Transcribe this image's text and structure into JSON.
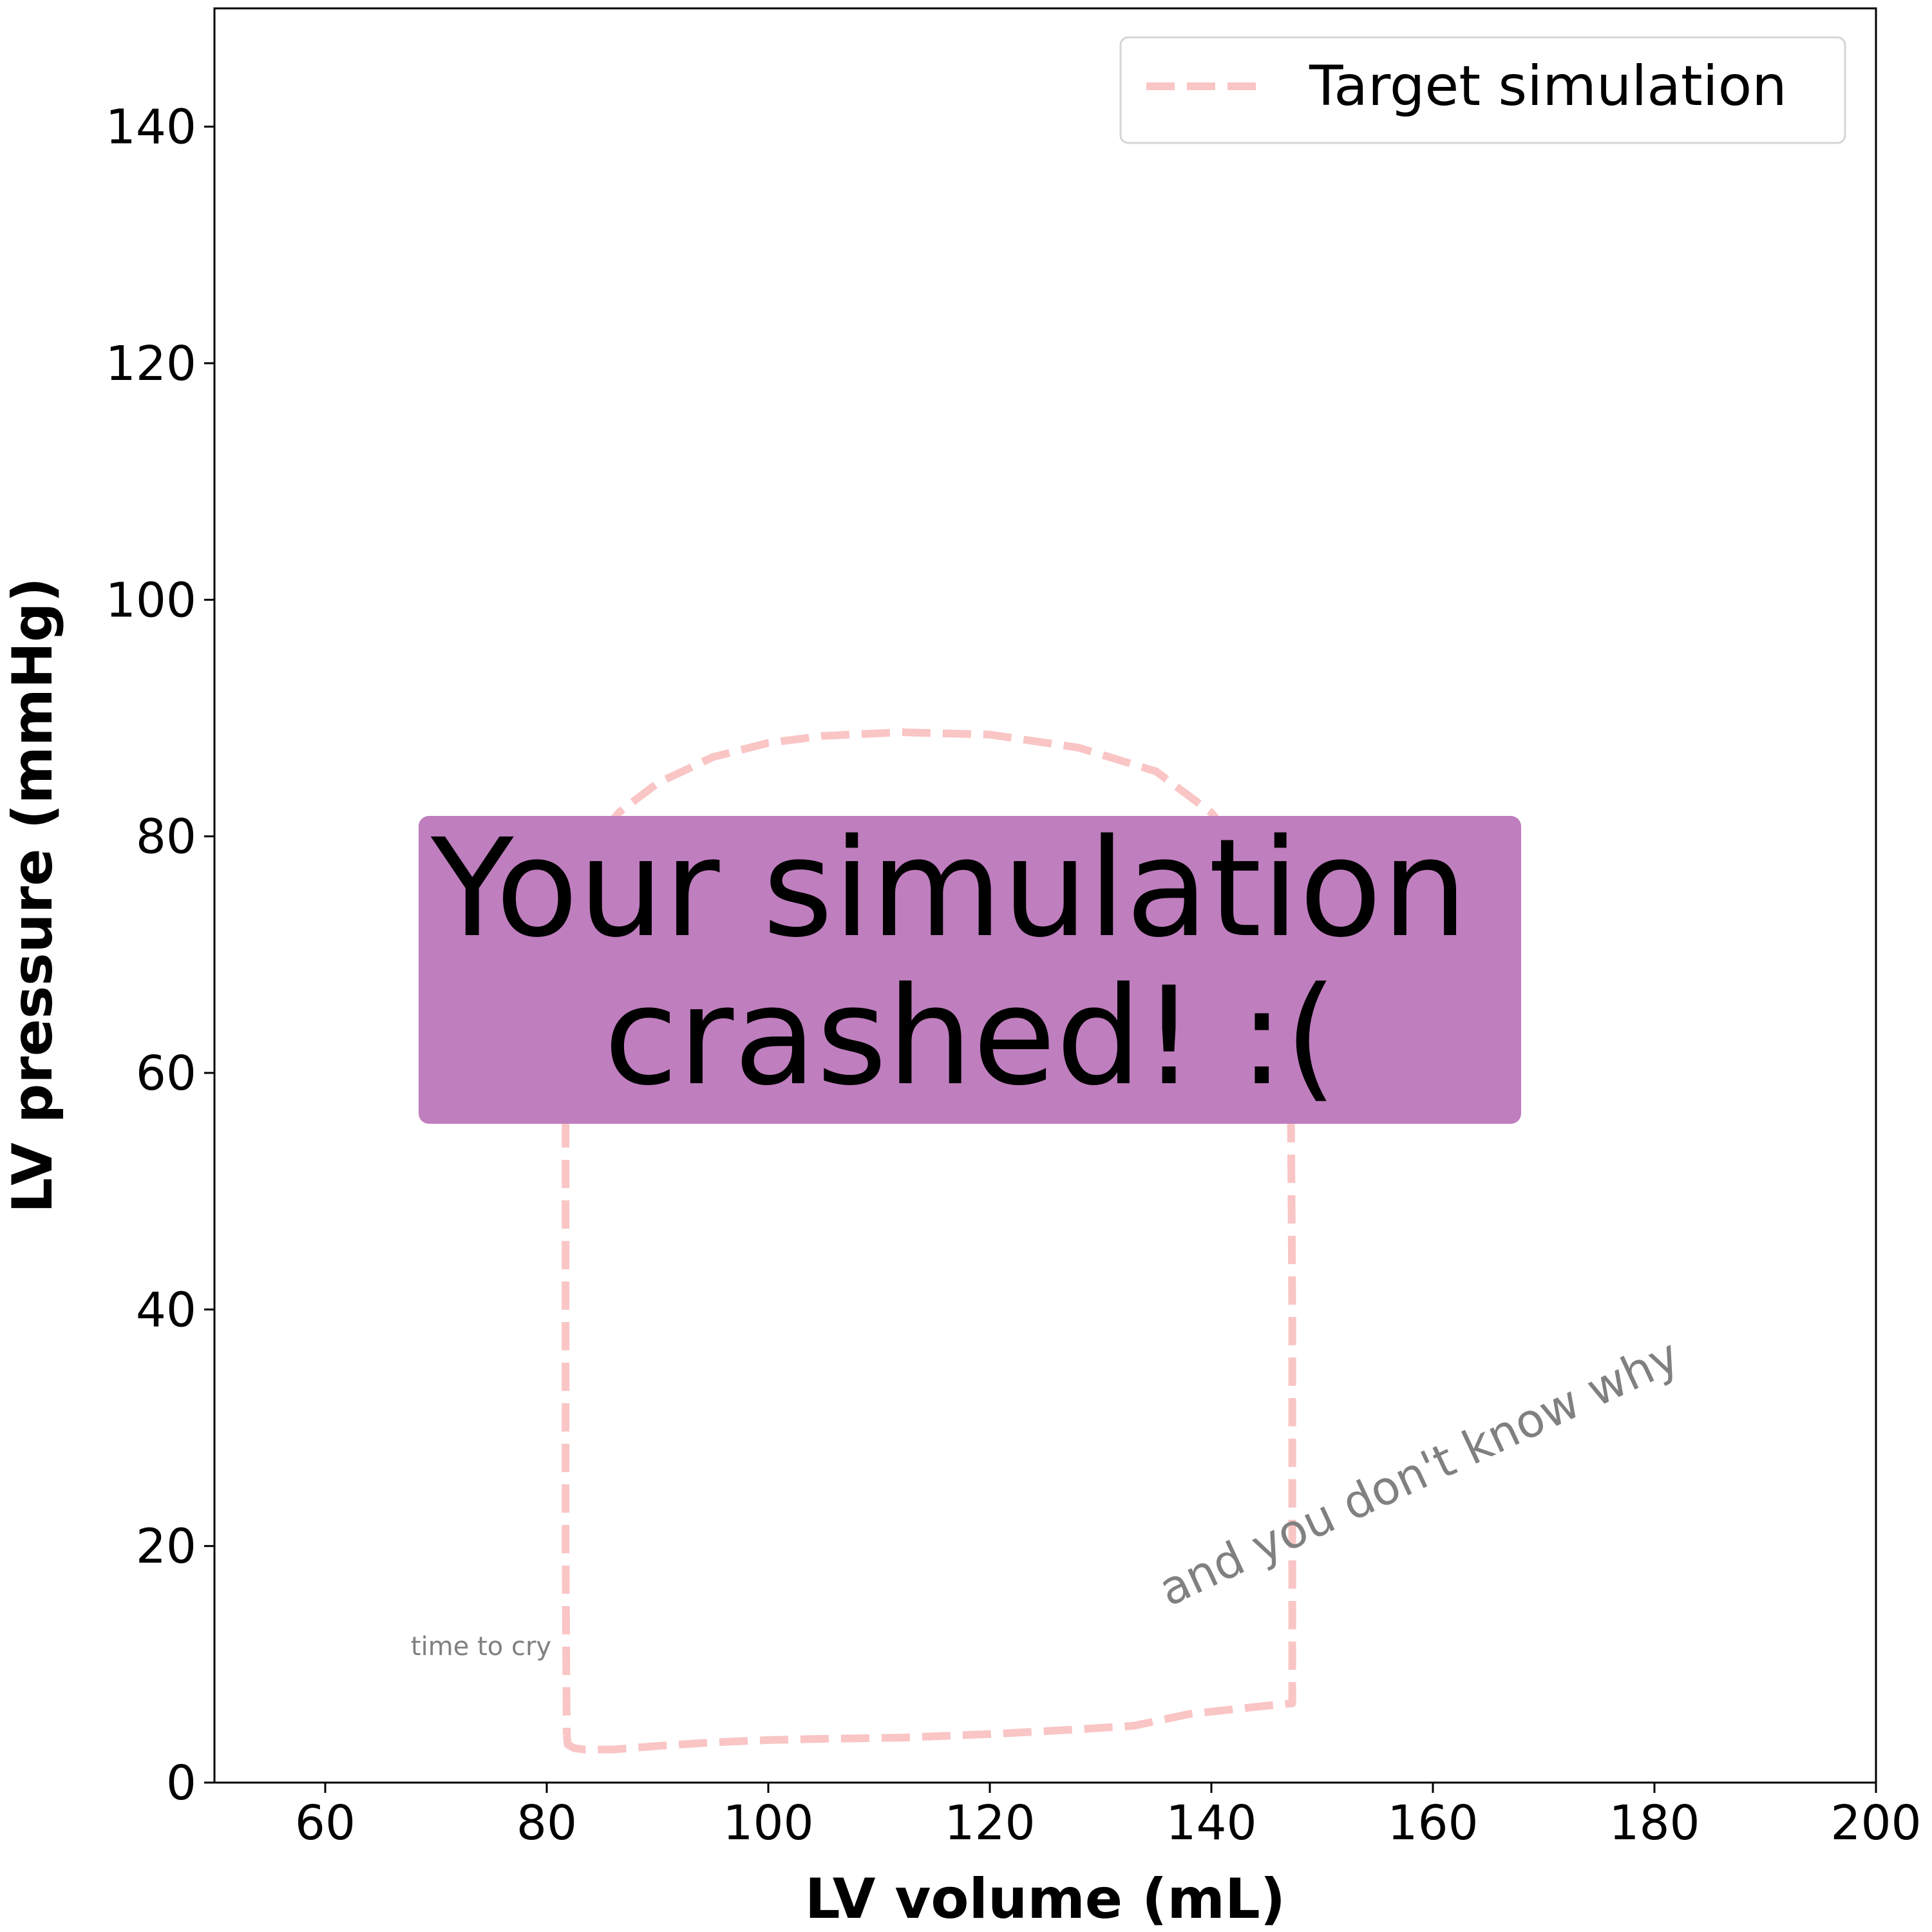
{
  "chart_data": {
    "type": "line",
    "xlabel": "LV volume (mL)",
    "ylabel": "LV pressure (mmHg)",
    "xlim": [
      50,
      200
    ],
    "ylim": [
      0,
      150
    ],
    "xticks": [
      60,
      80,
      100,
      120,
      140,
      160,
      180,
      200
    ],
    "yticks": [
      0,
      20,
      40,
      60,
      80,
      100,
      120,
      140
    ],
    "grid": false,
    "legend": {
      "placement": "top-right",
      "entries": [
        "Target simulation"
      ]
    },
    "series": [
      {
        "name": "Target simulation",
        "color": "#f9c5c5",
        "linestyle": "dashed",
        "x": [
          81.8,
          81.9,
          82.5,
          83.5,
          86,
          90,
          95,
          100,
          105,
          112,
          120,
          128,
          133,
          138,
          142,
          145,
          147.3,
          147.3,
          147.3,
          147.2,
          147.1,
          147,
          146.5,
          145.5,
          143.5,
          140,
          135,
          128,
          120,
          112,
          105,
          100,
          95,
          90,
          86.5,
          84,
          82.5,
          81.9,
          81.7,
          81.7,
          81.7,
          81.8
        ],
        "y": [
          4,
          3.2,
          2.9,
          2.8,
          2.8,
          3.1,
          3.4,
          3.6,
          3.7,
          3.8,
          4.1,
          4.5,
          4.8,
          5.8,
          6.2,
          6.5,
          6.7,
          20,
          40,
          55,
          60,
          65,
          70,
          74,
          78,
          82,
          85.5,
          87.5,
          88.6,
          88.8,
          88.5,
          87.9,
          86.7,
          84.5,
          82,
          79,
          75,
          70,
          60,
          40,
          20,
          4
        ]
      }
    ],
    "annotations": {
      "banner": [
        "Your simulation",
        "crashed! :("
      ],
      "banner_color": "#bf7ebe",
      "note_small": "time to cry",
      "note_rotated": "and you don't know why"
    }
  }
}
